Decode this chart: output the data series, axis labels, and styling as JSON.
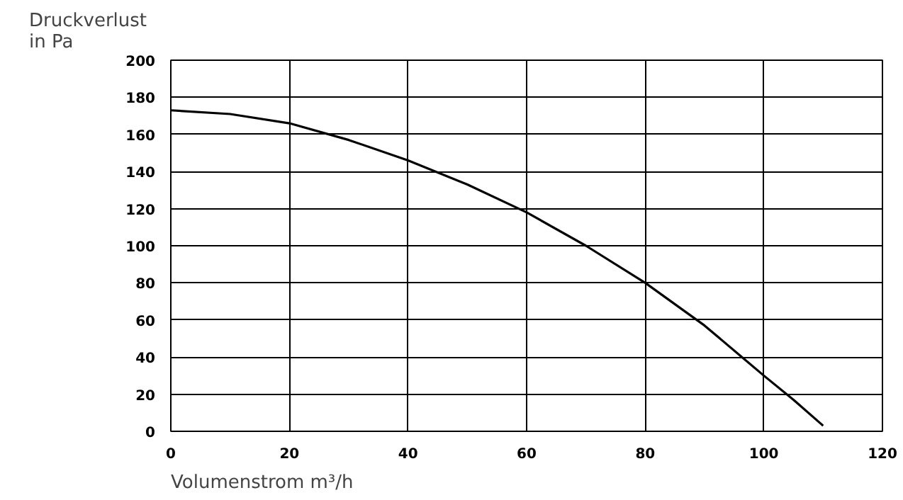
{
  "chart_data": {
    "type": "line",
    "xlabel": "Volumenstrom m³/h",
    "ylabel": "Druckverlust\nin Pa",
    "x": [
      0,
      10,
      20,
      30,
      40,
      50,
      60,
      70,
      80,
      90,
      100,
      105,
      110
    ],
    "series": [
      {
        "color": "#000000",
        "values": [
          173,
          171,
          166,
          157,
          146,
          133,
          118,
          100,
          80,
          57,
          30,
          17,
          3
        ]
      }
    ],
    "xlim": [
      0,
      120
    ],
    "ylim": [
      0,
      200
    ],
    "xticks": [
      0,
      20,
      40,
      60,
      80,
      100,
      120
    ],
    "yticks": [
      0,
      20,
      40,
      60,
      80,
      100,
      120,
      140,
      160,
      180,
      200
    ],
    "grid": true,
    "marker": "none",
    "line_style": "solid"
  }
}
